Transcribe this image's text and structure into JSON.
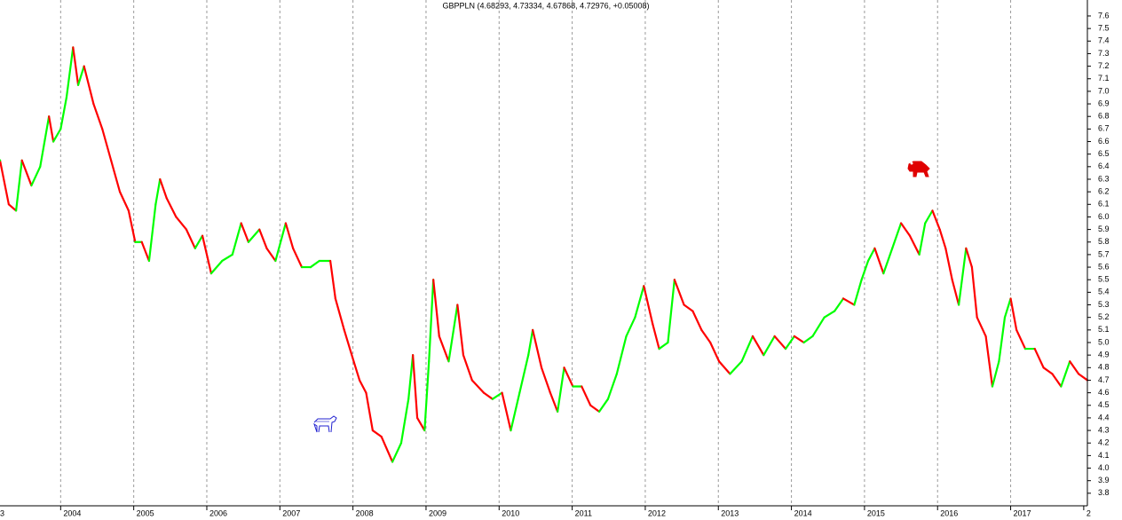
{
  "chart_data": {
    "type": "line",
    "title": "GBPPLN (4.68293, 4.73334, 4.67868, 4.72976, +0.05008)",
    "x": [
      2003.17,
      2003.29,
      2003.39,
      2003.47,
      2003.6,
      2003.72,
      2003.84,
      2003.9,
      2004.0,
      2004.08,
      2004.17,
      2004.24,
      2004.32,
      2004.45,
      2004.57,
      2004.69,
      2004.81,
      2004.93,
      2005.02,
      2005.11,
      2005.21,
      2005.3,
      2005.36,
      2005.45,
      2005.58,
      2005.72,
      2005.84,
      2005.94,
      2006.06,
      2006.21,
      2006.35,
      2006.47,
      2006.57,
      2006.72,
      2006.82,
      2006.94,
      2007.08,
      2007.18,
      2007.3,
      2007.42,
      2007.54,
      2007.69,
      2007.76,
      2007.88,
      2008.01,
      2008.09,
      2008.18,
      2008.27,
      2008.39,
      2008.54,
      2008.66,
      2008.76,
      2008.82,
      2008.88,
      2008.98,
      2009.04,
      2009.1,
      2009.18,
      2009.31,
      2009.43,
      2009.51,
      2009.63,
      2009.79,
      2009.91,
      2010.04,
      2010.16,
      2010.28,
      2010.4,
      2010.46,
      2010.58,
      2010.7,
      2010.8,
      2010.89,
      2011.01,
      2011.13,
      2011.25,
      2011.37,
      2011.49,
      2011.61,
      2011.74,
      2011.86,
      2011.98,
      2012.1,
      2012.19,
      2012.31,
      2012.4,
      2012.53,
      2012.65,
      2012.77,
      2012.89,
      2013.01,
      2013.16,
      2013.32,
      2013.47,
      2013.62,
      2013.77,
      2013.92,
      2014.04,
      2014.17,
      2014.29,
      2014.45,
      2014.59,
      2014.71,
      2014.86,
      2014.96,
      2015.05,
      2015.14,
      2015.26,
      2015.38,
      2015.5,
      2015.62,
      2015.75,
      2015.83,
      2015.93,
      2016.03,
      2016.11,
      2016.2,
      2016.29,
      2016.39,
      2016.47,
      2016.54,
      2016.66,
      2016.75,
      2016.84,
      2016.92,
      2017.0,
      2017.08,
      2017.2,
      2017.33,
      2017.45,
      2017.57,
      2017.69,
      2017.81,
      2017.93,
      2018.05
    ],
    "series": [
      {
        "name": "GBPPLN",
        "color": "#00ff00",
        "down_color": "#ff0000",
        "values": [
          6.45,
          6.1,
          6.05,
          6.45,
          6.25,
          6.4,
          6.8,
          6.6,
          6.7,
          6.95,
          7.35,
          7.05,
          7.2,
          6.9,
          6.7,
          6.45,
          6.2,
          6.05,
          5.8,
          5.8,
          5.65,
          6.1,
          6.3,
          6.15,
          6.0,
          5.9,
          5.75,
          5.85,
          5.55,
          5.65,
          5.7,
          5.95,
          5.8,
          5.9,
          5.75,
          5.65,
          5.95,
          5.75,
          5.6,
          5.6,
          5.65,
          5.65,
          5.35,
          5.1,
          4.85,
          4.7,
          4.6,
          4.3,
          4.25,
          4.05,
          4.2,
          4.55,
          4.9,
          4.4,
          4.3,
          4.85,
          5.5,
          5.05,
          4.85,
          5.3,
          4.9,
          4.7,
          4.6,
          4.55,
          4.6,
          4.3,
          4.6,
          4.9,
          5.1,
          4.8,
          4.6,
          4.45,
          4.8,
          4.65,
          4.65,
          4.5,
          4.45,
          4.55,
          4.75,
          5.05,
          5.2,
          5.45,
          5.15,
          4.95,
          5.0,
          5.5,
          5.3,
          5.25,
          5.1,
          5.0,
          4.85,
          4.75,
          4.85,
          5.05,
          4.9,
          5.05,
          4.95,
          5.05,
          5.0,
          5.05,
          5.2,
          5.25,
          5.35,
          5.3,
          5.5,
          5.65,
          5.75,
          5.55,
          5.75,
          5.95,
          5.85,
          5.7,
          5.95,
          6.05,
          5.9,
          5.75,
          5.5,
          5.3,
          5.75,
          5.6,
          5.2,
          5.05,
          4.65,
          4.85,
          5.2,
          5.35,
          5.1,
          4.95,
          4.95,
          4.8,
          4.75,
          4.65,
          4.85,
          4.75,
          4.7
        ]
      }
    ],
    "xlim": [
      2003.17,
      2018.05
    ],
    "xticks": [
      {
        "value": 2003,
        "label": "3"
      },
      2004,
      2005,
      2006,
      2007,
      2008,
      2009,
      2010,
      2011,
      2012,
      2013,
      2014,
      2015,
      2016,
      2017,
      {
        "value": 2018,
        "label": "2"
      }
    ],
    "ylim": [
      3.7,
      7.727
    ],
    "yticks": [
      3.8,
      3.9,
      {
        "value": 4,
        "label": "4.0"
      },
      4.1,
      4.2,
      4.3,
      4.4,
      4.5,
      4.6,
      4.7,
      4.8,
      4.9,
      {
        "value": 5,
        "label": "5.0"
      },
      5.1,
      5.2,
      5.3,
      5.4,
      5.5,
      5.6,
      5.7,
      5.8,
      5.9,
      {
        "value": 6,
        "label": "6.0"
      },
      6.1,
      6.2,
      6.3,
      6.4,
      6.5,
      6.6,
      6.7,
      6.8,
      6.9,
      {
        "value": 7,
        "label": "7.0"
      },
      7.1,
      7.2,
      7.3,
      7.4,
      7.5,
      7.6
    ],
    "y_axis_side": "right",
    "grid": "x"
  }
}
